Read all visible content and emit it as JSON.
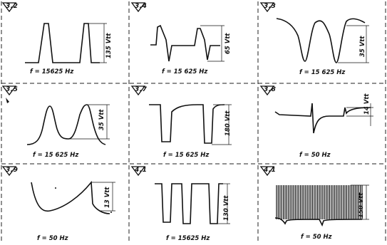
{
  "waveforms": [
    {
      "id": "3.2",
      "amplitude": "135 Vtt",
      "frequency": "f = 15625 Hz"
    },
    {
      "id": "3.4",
      "amplitude": "65 Vtt",
      "frequency": "f = 15 625 Hz"
    },
    {
      "id": "3.3",
      "amplitude": "35 Vtt",
      "frequency": "f = 15 625 Hz"
    },
    {
      "id": "3.5",
      "amplitude": "35 Vtt",
      "frequency": "f = 15 625 Hz"
    },
    {
      "id": "3.7",
      "amplitude": "180 Vtt",
      "frequency": "f = 15 625 Hz"
    },
    {
      "id": "3.8",
      "amplitude": "14 Vtt",
      "frequency": "f = 50 Hz"
    },
    {
      "id": "3.9",
      "amplitude": "13 Vtt",
      "frequency": "f = 50 Hz"
    },
    {
      "id": "4.1",
      "amplitude": "130 Vtt",
      "frequency": "f = 15625 Hz"
    },
    {
      "id": "4.1",
      "amplitude": "150 Vtt",
      "frequency": "f = 50 Hz"
    }
  ]
}
